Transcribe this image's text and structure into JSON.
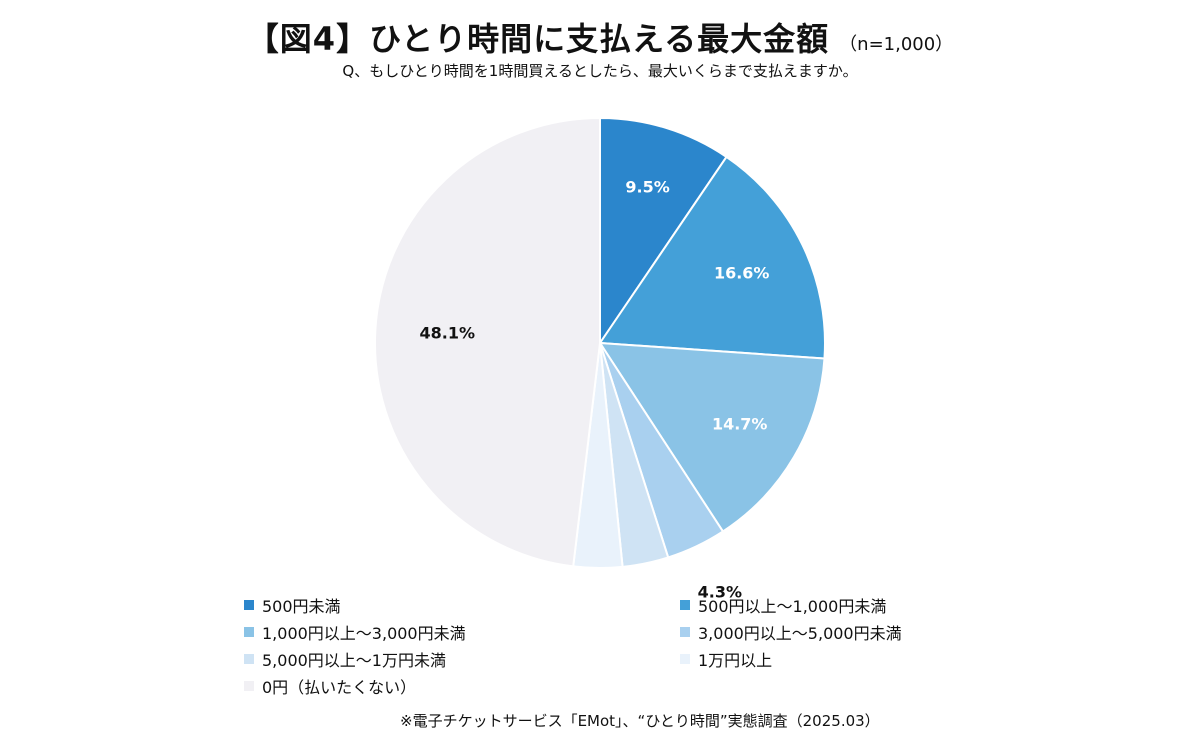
{
  "header": {
    "title": "【図4】ひとり時間に支払える最大金額",
    "sample": "（n=1,000）",
    "question": "Q、もしひとり時間を1時間買えるとしたら、最大いくらまで支払えますか。"
  },
  "footer": {
    "source": "※電子チケットサービス「EMot」、“ひとり時間”実態調査（2025.03）"
  },
  "chart_data": {
    "type": "pie",
    "categories": [
      "500円未満",
      "500円以上～1,000円未満",
      "1,000円以上～3,000円未満",
      "3,000円以上～5,000円未満",
      "5,000円以上～1万円未満",
      "1万円以上",
      "0円（払いたくない）"
    ],
    "values": [
      9.5,
      16.6,
      14.7,
      4.3,
      3.3,
      3.5,
      48.1
    ],
    "labels": [
      "9.5%",
      "16.6%",
      "14.7%",
      "4.3%",
      "3.3%",
      "3.5%",
      "48.1%"
    ],
    "colors": [
      "#2b86cc",
      "#44a0d8",
      "#8ac3e6",
      "#a9d0ef",
      "#cfe3f4",
      "#e9f2fb",
      "#f1f0f4"
    ],
    "label_colors": [
      "#ffffff",
      "#ffffff",
      "#ffffff",
      "#111111",
      "#111111",
      "#111111",
      "#111111"
    ],
    "legend_position": "bottom",
    "start_angle_deg": 0,
    "direction": "clockwise"
  }
}
